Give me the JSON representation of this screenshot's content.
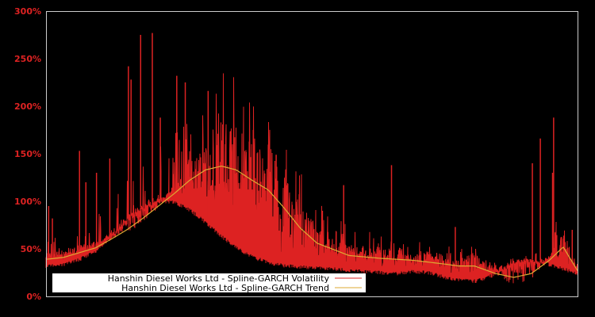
{
  "chart_data": {
    "type": "line",
    "title": "",
    "xlabel": "",
    "ylabel": "",
    "ylim": [
      0,
      300
    ],
    "y_ticks": [
      "0%",
      "50%",
      "100%",
      "150%",
      "200%",
      "250%",
      "300%"
    ],
    "y_tick_values": [
      0,
      50,
      100,
      150,
      200,
      250,
      300
    ],
    "grid": false,
    "background": "#000000",
    "legend_position": "bottom-left inside",
    "series": [
      {
        "name": "Hanshin Diesel Works Ltd - Spline-GARCH Volatility",
        "color": "#dd2222",
        "style": "noisy high-frequency line with spikes",
        "baseline_x_frac": [
          0.0,
          0.03,
          0.06,
          0.09,
          0.12,
          0.15,
          0.18,
          0.21,
          0.24,
          0.27,
          0.3,
          0.33,
          0.36,
          0.39,
          0.42,
          0.45,
          0.48,
          0.51,
          0.54,
          0.57,
          0.6,
          0.63,
          0.66,
          0.69,
          0.72,
          0.75,
          0.78,
          0.81,
          0.84,
          0.87,
          0.9,
          0.93,
          0.96,
          1.0
        ],
        "baseline_values": [
          34,
          35,
          40,
          48,
          62,
          80,
          95,
          102,
          101,
          93,
          80,
          65,
          52,
          43,
          37,
          34,
          33,
          32,
          31,
          29,
          28,
          27,
          26,
          28,
          27,
          22,
          19,
          18,
          24,
          34,
          40,
          38,
          33,
          26
        ],
        "spikes": [
          {
            "x_frac": 0.005,
            "value": 95
          },
          {
            "x_frac": 0.012,
            "value": 82
          },
          {
            "x_frac": 0.063,
            "value": 153
          },
          {
            "x_frac": 0.075,
            "value": 120
          },
          {
            "x_frac": 0.095,
            "value": 130
          },
          {
            "x_frac": 0.12,
            "value": 145
          },
          {
            "x_frac": 0.155,
            "value": 242
          },
          {
            "x_frac": 0.16,
            "value": 228
          },
          {
            "x_frac": 0.178,
            "value": 275
          },
          {
            "x_frac": 0.2,
            "value": 277
          },
          {
            "x_frac": 0.215,
            "value": 188
          },
          {
            "x_frac": 0.246,
            "value": 232
          },
          {
            "x_frac": 0.262,
            "value": 225
          },
          {
            "x_frac": 0.305,
            "value": 216
          },
          {
            "x_frac": 0.33,
            "value": 164
          },
          {
            "x_frac": 0.39,
            "value": 175
          },
          {
            "x_frac": 0.433,
            "value": 149
          },
          {
            "x_frac": 0.52,
            "value": 90
          },
          {
            "x_frac": 0.56,
            "value": 117
          },
          {
            "x_frac": 0.65,
            "value": 138
          },
          {
            "x_frac": 0.77,
            "value": 73
          },
          {
            "x_frac": 0.915,
            "value": 140
          },
          {
            "x_frac": 0.93,
            "value": 166
          },
          {
            "x_frac": 0.953,
            "value": 130
          },
          {
            "x_frac": 0.955,
            "value": 188
          },
          {
            "x_frac": 0.99,
            "value": 70
          }
        ]
      },
      {
        "name": "Hanshin Diesel Works Ltd - Spline-GARCH Trend",
        "color": "#ddaa33",
        "x_frac": [
          0.0,
          0.033,
          0.063,
          0.093,
          0.122,
          0.152,
          0.182,
          0.207,
          0.241,
          0.27,
          0.3,
          0.33,
          0.358,
          0.388,
          0.418,
          0.448,
          0.478,
          0.51,
          0.57,
          0.63,
          0.69,
          0.75,
          0.776,
          0.806,
          0.846,
          0.88,
          0.913,
          0.947,
          0.973,
          1.0
        ],
        "values": [
          39,
          41,
          46,
          51,
          60,
          70,
          82,
          93,
          108,
          122,
          133,
          137,
          133,
          122,
          112,
          93,
          72,
          56,
          43,
          40,
          38,
          34,
          32,
          32,
          24,
          20,
          24,
          38,
          52,
          27
        ]
      }
    ]
  },
  "legend": {
    "items": [
      {
        "label": "Hanshin Diesel Works Ltd - Spline-GARCH Volatility",
        "color": "#dd2222"
      },
      {
        "label": "Hanshin Diesel Works Ltd - Spline-GARCH Trend",
        "color": "#ddaa33"
      }
    ]
  },
  "axis": {
    "y_labels": [
      "300%",
      "250%",
      "200%",
      "150%",
      "100%",
      "50%",
      "0%"
    ]
  }
}
